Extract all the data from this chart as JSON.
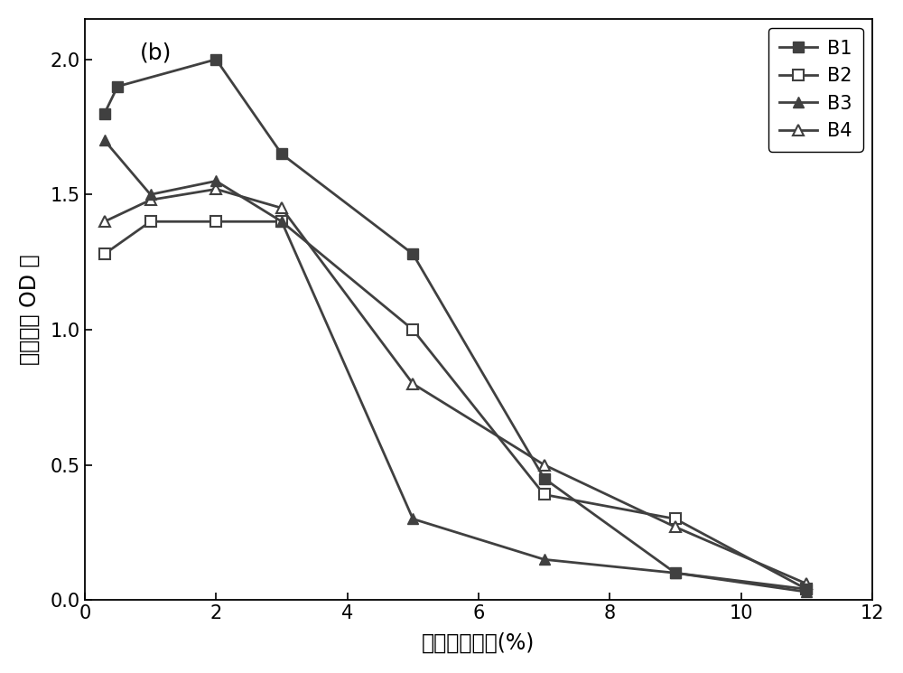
{
  "B1_x": [
    0.3,
    0.5,
    2,
    3,
    5,
    7,
    9,
    11
  ],
  "B1_y": [
    1.8,
    1.9,
    2.0,
    1.65,
    1.28,
    0.45,
    0.1,
    0.04
  ],
  "B2_x": [
    0.3,
    1,
    2,
    3,
    5,
    7,
    9,
    11
  ],
  "B2_y": [
    1.28,
    1.4,
    1.4,
    1.4,
    1.0,
    0.39,
    0.3,
    0.04
  ],
  "B3_x": [
    0.3,
    1,
    2,
    3,
    5,
    7,
    9,
    11
  ],
  "B3_y": [
    1.7,
    1.5,
    1.55,
    1.4,
    0.3,
    0.15,
    0.1,
    0.03
  ],
  "B4_x": [
    0.3,
    1,
    2,
    3,
    5,
    7,
    9,
    11
  ],
  "B4_y": [
    1.4,
    1.48,
    1.52,
    1.45,
    0.8,
    0.5,
    0.27,
    0.06
  ],
  "xlabel": "培养基的盐度(%)",
  "ylabel": "培养基的 OD 値",
  "label_b": "(b)",
  "legend": [
    "B1",
    "B2",
    "B3",
    "B4"
  ],
  "xlim": [
    0,
    12
  ],
  "ylim": [
    0.0,
    2.15
  ],
  "xticks": [
    0,
    2,
    4,
    6,
    8,
    10,
    12
  ],
  "yticks": [
    0.0,
    0.5,
    1.0,
    1.5,
    2.0
  ],
  "color": "#404040",
  "linewidth": 2.0,
  "markersize": 9,
  "fontsize_label": 17,
  "fontsize_tick": 15,
  "fontsize_legend": 15,
  "fontsize_annotation": 18
}
